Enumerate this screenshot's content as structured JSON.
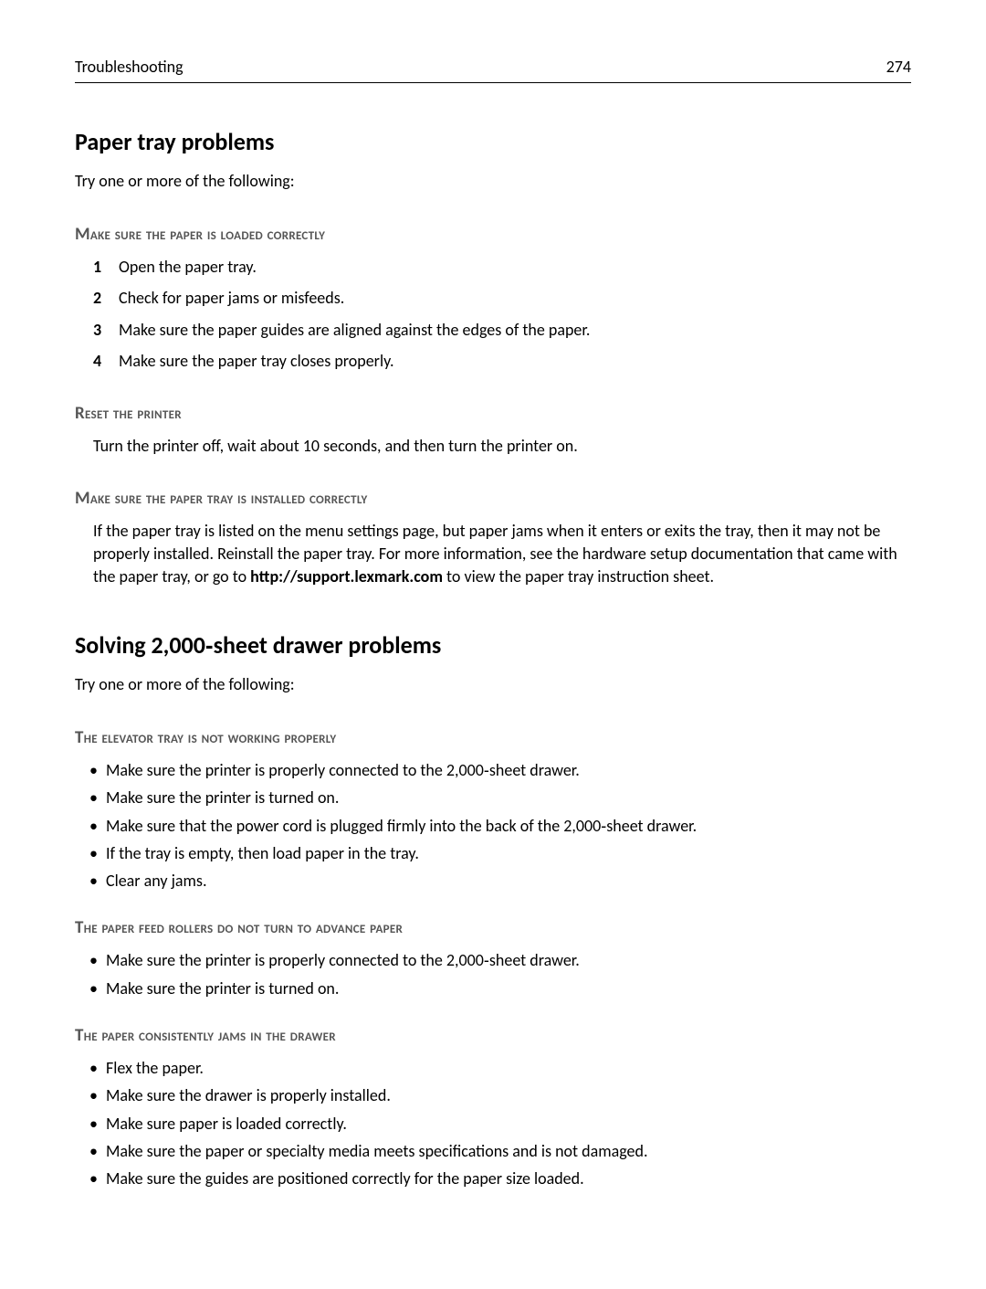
{
  "header": {
    "section_name": "Troubleshooting",
    "page_number": "274"
  },
  "s1": {
    "title": "Paper tray problems",
    "intro": "Try one or more of the following:",
    "sub1": {
      "title": "Make sure the paper is loaded correctly",
      "items": [
        "Open the paper tray.",
        "Check for paper jams or misfeeds.",
        "Make sure the paper guides are aligned against the edges of the paper.",
        "Make sure the paper tray closes properly."
      ]
    },
    "sub2": {
      "title": "Reset the printer",
      "text": "Turn the printer off, wait about 10 seconds, and then turn the printer on."
    },
    "sub3": {
      "title": "Make sure the paper tray is installed correctly",
      "text_before": "If the paper tray is listed on the menu settings page, but paper jams when it enters or exits the tray, then it may not be properly installed. Reinstall the paper tray. For more information, see the hardware setup documentation that came with the paper tray, or go to ",
      "link": "http://support.lexmark.com",
      "text_after": " to view the paper tray instruction sheet."
    }
  },
  "s2": {
    "title": "Solving 2,000‑sheet drawer problems",
    "intro": "Try one or more of the following:",
    "sub1": {
      "title": "The elevator tray is not working properly",
      "items": [
        "Make sure the printer is properly connected to the 2,000‑sheet drawer.",
        "Make sure the printer is turned on.",
        "Make sure that the power cord is plugged firmly into the back of the 2,000‑sheet drawer.",
        "If the tray is empty, then load paper in the tray.",
        "Clear any jams."
      ]
    },
    "sub2": {
      "title": "The paper feed rollers do not turn to advance paper",
      "items": [
        "Make sure the printer is properly connected to the 2,000‑sheet drawer.",
        "Make sure the printer is turned on."
      ]
    },
    "sub3": {
      "title": "The paper consistently jams in the drawer",
      "items": [
        "Flex the paper.",
        "Make sure the drawer is properly installed.",
        "Make sure paper is loaded correctly.",
        "Make sure the paper or specialty media meets specifications and is not damaged.",
        "Make sure the guides are positioned correctly for the paper size loaded."
      ]
    }
  }
}
